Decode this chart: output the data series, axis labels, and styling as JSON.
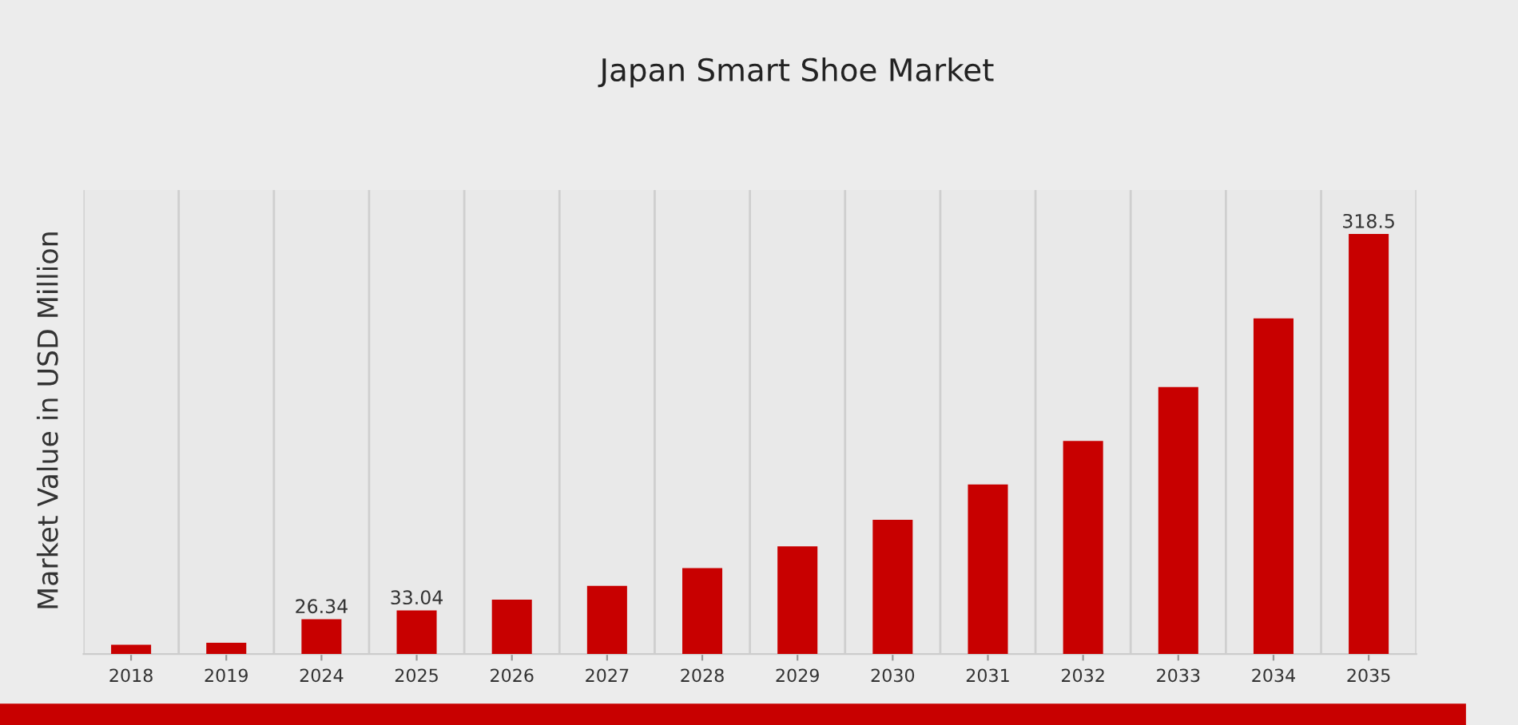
{
  "chart_data": {
    "type": "bar",
    "title": "Japan Smart Shoe Market",
    "ylabel": "Market Value in USD Million",
    "categories": [
      "2018",
      "2019",
      "2024",
      "2025",
      "2026",
      "2027",
      "2028",
      "2029",
      "2030",
      "2031",
      "2032",
      "2033",
      "2034",
      "2035"
    ],
    "values": [
      6.9,
      8.5,
      26.34,
      33.04,
      41.2,
      51.7,
      65.1,
      81.6,
      101.8,
      128.5,
      161.6,
      202.5,
      254.6,
      318.5
    ],
    "value_labels": [
      null,
      null,
      "26.34",
      "33.04",
      null,
      null,
      null,
      null,
      null,
      null,
      null,
      null,
      null,
      "318.5"
    ],
    "color": "#c80000",
    "grid": "x"
  }
}
